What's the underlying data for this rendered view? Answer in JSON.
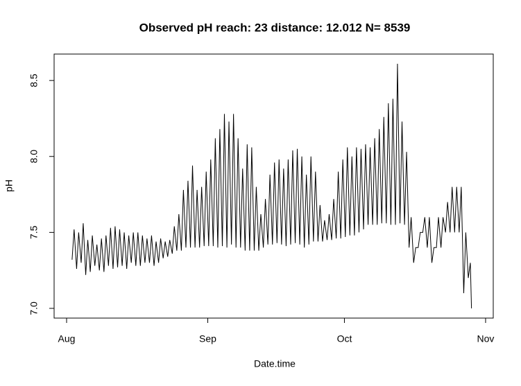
{
  "chart_data": {
    "type": "line",
    "title": "Observed pH  reach: 23  distance: 12.012 N= 8539",
    "x_label": "Date.time",
    "y_label": "pH",
    "xlim": [
      -2.74,
      93.68
    ],
    "ylim": [
      6.936,
      8.674
    ],
    "xticks": [
      {
        "value": 0,
        "label": "Aug"
      },
      {
        "value": 31,
        "label": "Sep"
      },
      {
        "value": 61,
        "label": "Oct"
      },
      {
        "value": 92,
        "label": "Nov"
      }
    ],
    "yticks": [
      {
        "value": 7,
        "label": "7.0"
      },
      7.5,
      {
        "value": 8,
        "label": "8.0"
      },
      8.5
    ],
    "grid": false,
    "series": [
      {
        "color": "#000000",
        "x": [
          1.2,
          1.65,
          2.2,
          2.65,
          3.2,
          3.65,
          4.2,
          4.65,
          5.2,
          5.65,
          6.2,
          6.65,
          7.2,
          7.65,
          8.2,
          8.65,
          9.2,
          9.65,
          10.2,
          10.65,
          11.2,
          11.65,
          12.2,
          12.65,
          13.2,
          13.65,
          14.2,
          14.65,
          15.2,
          15.65,
          16.2,
          16.65,
          17.2,
          17.65,
          18.2,
          18.65,
          19.2,
          19.65,
          20.2,
          20.65,
          21.2,
          21.65,
          22.2,
          22.65,
          23.2,
          23.65,
          24.2,
          24.65,
          25.2,
          25.65,
          26.2,
          26.65,
          27.2,
          27.65,
          28.2,
          28.65,
          29.2,
          29.65,
          30.2,
          30.65,
          31.2,
          31.65,
          32.2,
          32.65,
          33.2,
          33.65,
          34.2,
          34.65,
          35.2,
          35.65,
          36.2,
          36.65,
          37.2,
          37.65,
          38.2,
          38.65,
          39.2,
          39.65,
          40.2,
          40.65,
          41.2,
          41.65,
          42.2,
          42.65,
          43.2,
          43.65,
          44.2,
          44.65,
          45.2,
          45.65,
          46.2,
          46.65,
          47.2,
          47.65,
          48.2,
          48.65,
          49.2,
          49.65,
          50.2,
          50.65,
          51.2,
          51.65,
          52.2,
          52.65,
          53.2,
          53.65,
          54.2,
          54.65,
          55.2,
          55.65,
          56.2,
          56.65,
          57.2,
          57.65,
          58.2,
          58.65,
          59.2,
          59.65,
          60.2,
          60.65,
          61.2,
          61.65,
          62.2,
          62.65,
          63.2,
          63.65,
          64.2,
          64.65,
          65.2,
          65.65,
          66.2,
          66.65,
          67.2,
          67.65,
          68.2,
          68.65,
          69.2,
          69.65,
          70.2,
          70.65,
          71.2,
          71.65,
          72.2,
          72.65,
          73.2,
          73.65,
          74.2,
          74.65,
          75.2,
          75.65,
          76.2,
          76.65,
          77.2,
          77.65,
          78.2,
          78.65,
          79.2,
          79.65,
          80.2,
          80.65,
          81.2,
          81.65,
          82.2,
          82.65,
          83.2,
          83.65,
          84.2,
          84.65,
          85.2,
          85.65,
          86.2,
          86.65,
          87.2,
          87.65,
          88.2,
          88.65,
          88.9
        ],
        "values": [
          7.32,
          7.52,
          7.26,
          7.5,
          7.3,
          7.56,
          7.22,
          7.45,
          7.24,
          7.48,
          7.28,
          7.42,
          7.25,
          7.46,
          7.24,
          7.48,
          7.28,
          7.53,
          7.26,
          7.54,
          7.27,
          7.52,
          7.28,
          7.5,
          7.26,
          7.48,
          7.3,
          7.5,
          7.28,
          7.5,
          7.28,
          7.48,
          7.3,
          7.46,
          7.3,
          7.48,
          7.28,
          7.44,
          7.3,
          7.46,
          7.33,
          7.44,
          7.34,
          7.45,
          7.36,
          7.54,
          7.38,
          7.62,
          7.38,
          7.78,
          7.4,
          7.84,
          7.4,
          7.94,
          7.4,
          7.78,
          7.4,
          7.8,
          7.41,
          7.9,
          7.41,
          7.98,
          7.41,
          8.12,
          7.4,
          8.18,
          7.41,
          8.28,
          7.4,
          8.23,
          7.42,
          8.28,
          7.4,
          8.12,
          7.4,
          7.92,
          7.38,
          8.08,
          7.38,
          8.06,
          7.38,
          7.8,
          7.38,
          7.62,
          7.4,
          7.72,
          7.42,
          7.88,
          7.42,
          7.96,
          7.43,
          7.98,
          7.42,
          7.92,
          7.41,
          7.98,
          7.42,
          8.04,
          7.43,
          8.05,
          7.42,
          8.0,
          7.4,
          7.88,
          7.42,
          8.0,
          7.44,
          7.9,
          7.44,
          7.68,
          7.44,
          7.58,
          7.45,
          7.62,
          7.45,
          7.72,
          7.46,
          7.9,
          7.46,
          7.98,
          7.47,
          8.06,
          7.48,
          8.0,
          7.48,
          8.06,
          7.5,
          8.05,
          7.52,
          8.08,
          7.55,
          8.06,
          7.55,
          8.12,
          7.55,
          8.18,
          7.56,
          8.26,
          7.56,
          8.35,
          7.55,
          8.38,
          7.55,
          8.61,
          7.56,
          8.23,
          7.55,
          8.03,
          7.4,
          7.6,
          7.3,
          7.4,
          7.4,
          7.5,
          7.5,
          7.6,
          7.4,
          7.6,
          7.3,
          7.4,
          7.4,
          7.6,
          7.4,
          7.6,
          7.5,
          7.7,
          7.5,
          7.8,
          7.5,
          7.8,
          7.5,
          7.8,
          7.1,
          7.5,
          7.2,
          7.3,
          7.0
        ]
      }
    ]
  }
}
